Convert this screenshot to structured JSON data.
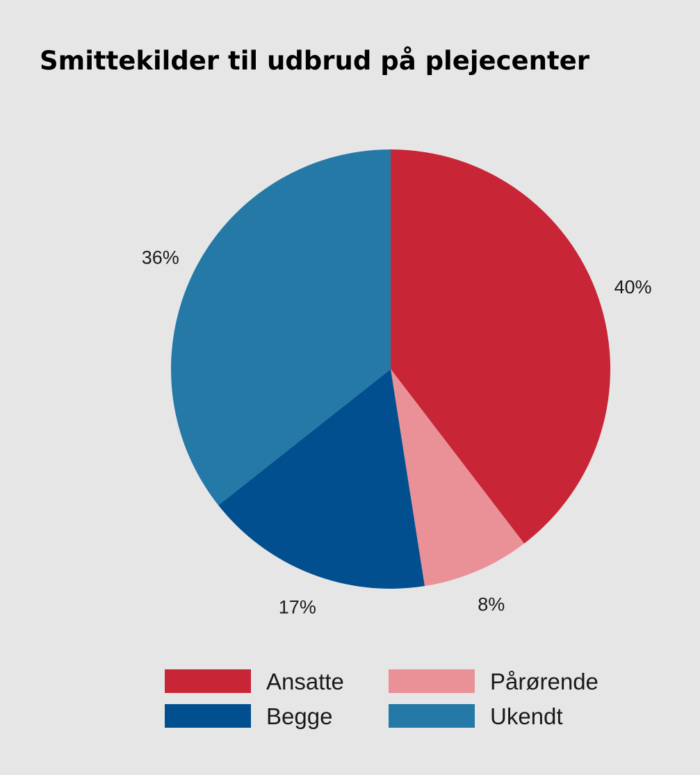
{
  "chart_data": {
    "type": "pie",
    "title": "Smittekilder til udbrud på plejecenter",
    "slices": [
      {
        "label": "Ansatte",
        "value": 40,
        "display": "40%",
        "color": "#c82536"
      },
      {
        "label": "Pårørende",
        "value": 8,
        "display": "8%",
        "color": "#ea9198"
      },
      {
        "label": "Begge",
        "value": 17,
        "display": "17%",
        "color": "#024f90"
      },
      {
        "label": "Ukendt",
        "value": 36,
        "display": "36%",
        "color": "#2479a7"
      }
    ],
    "start_angle": "top",
    "direction": "clockwise",
    "legend": {
      "placement": "bottom",
      "entries": [
        "Ansatte",
        "Pårørende",
        "Begge",
        "Ukendt"
      ]
    }
  }
}
